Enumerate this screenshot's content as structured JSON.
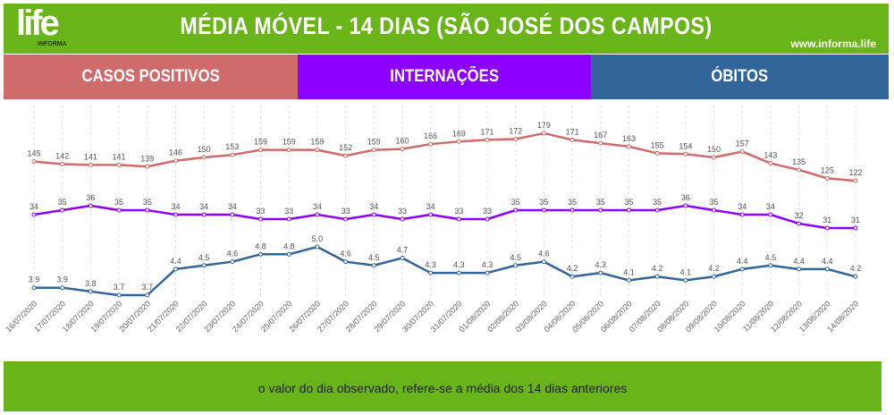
{
  "header": {
    "logo_text": "life",
    "logo_sub": "INFORMA",
    "title": "MÉDIA MÓVEL - 14 DIAS (SÃO JOSÉ DOS CAMPOS)",
    "site": "www.informa.life"
  },
  "tabs": [
    {
      "label": "CASOS POSITIVOS",
      "color": "#cf6b6b"
    },
    {
      "label": "INTERNAÇÕES",
      "color": "#8b00ff"
    },
    {
      "label": "ÓBITOS",
      "color": "#32659a"
    }
  ],
  "footer": {
    "note": "o valor do dia observado, refere-se a média dos 14 dias anteriores"
  },
  "chart_data": {
    "type": "line",
    "categories": [
      "16/07/2020",
      "17/07/2020",
      "18/07/2020",
      "19/07/2020",
      "20/07/2020",
      "21/07/2020",
      "22/07/2020",
      "23/07/2020",
      "24/07/2020",
      "25/07/2020",
      "26/07/2020",
      "27/07/2020",
      "28/07/2020",
      "29/07/2020",
      "30/07/2020",
      "31/07/2020",
      "01/08/2020",
      "02/08/2020",
      "03/08/2020",
      "04/08/2020",
      "05/08/2020",
      "06/08/2020",
      "07/08/2020",
      "08/08/2020",
      "09/08/2020",
      "10/08/2020",
      "11/08/2020",
      "12/08/2020",
      "13/08/2020",
      "14/08/2020"
    ],
    "series": [
      {
        "name": "CASOS POSITIVOS",
        "color": "#cf6b6b",
        "values": [
          145,
          142,
          141,
          141,
          139,
          146,
          150,
          153,
          159,
          159,
          159,
          152,
          159,
          160,
          166,
          169,
          171,
          172,
          179,
          171,
          167,
          163,
          155,
          154,
          150,
          157,
          143,
          135,
          125,
          122
        ],
        "labels": [
          "145",
          "142",
          "141",
          "141",
          "139",
          "146",
          "150",
          "153",
          "159",
          "159",
          "159",
          "152",
          "159",
          "160",
          "166",
          "169",
          "171",
          "172",
          "179",
          "171",
          "167",
          "163",
          "155",
          "154",
          "150",
          "157",
          "143",
          "135",
          "125",
          "122"
        ]
      },
      {
        "name": "INTERNAÇÕES",
        "color": "#8b00ff",
        "values": [
          34,
          35,
          36,
          35,
          35,
          34,
          34,
          34,
          33,
          33,
          34,
          33,
          34,
          33,
          34,
          33,
          33,
          35,
          35,
          35,
          35,
          35,
          35,
          36,
          35,
          34,
          34,
          32,
          31,
          31
        ],
        "labels": [
          "34",
          "35",
          "36",
          "35",
          "35",
          "34",
          "34",
          "34",
          "33",
          "33",
          "34",
          "33",
          "34",
          "33",
          "34",
          "33",
          "33",
          "35",
          "35",
          "35",
          "35",
          "35",
          "35",
          "36",
          "35",
          "34",
          "34",
          "32",
          "31",
          "31"
        ]
      },
      {
        "name": "ÓBITOS",
        "color": "#32659a",
        "values": [
          3.9,
          3.9,
          3.8,
          3.7,
          3.7,
          4.4,
          4.5,
          4.6,
          4.8,
          4.8,
          5.0,
          4.6,
          4.5,
          4.7,
          4.3,
          4.3,
          4.3,
          4.5,
          4.6,
          4.2,
          4.3,
          4.1,
          4.2,
          4.1,
          4.2,
          4.4,
          4.5,
          4.4,
          4.4,
          4.2
        ],
        "labels": [
          "3.9",
          "3.9",
          "3.8",
          "3.7",
          "3.7",
          "4.4",
          "4.5",
          "4.6",
          "4.8",
          "4.8",
          "5.0",
          "4.6",
          "4.5",
          "4.7",
          "4.3",
          "4.3",
          "4.3",
          "4.5",
          "4.6",
          "4.2",
          "4.3",
          "4.1",
          "4.2",
          "4.1",
          "4.2",
          "4.4",
          "4.5",
          "4.4",
          "4.4",
          "4.2"
        ]
      }
    ],
    "grid": "vertical dashed"
  }
}
